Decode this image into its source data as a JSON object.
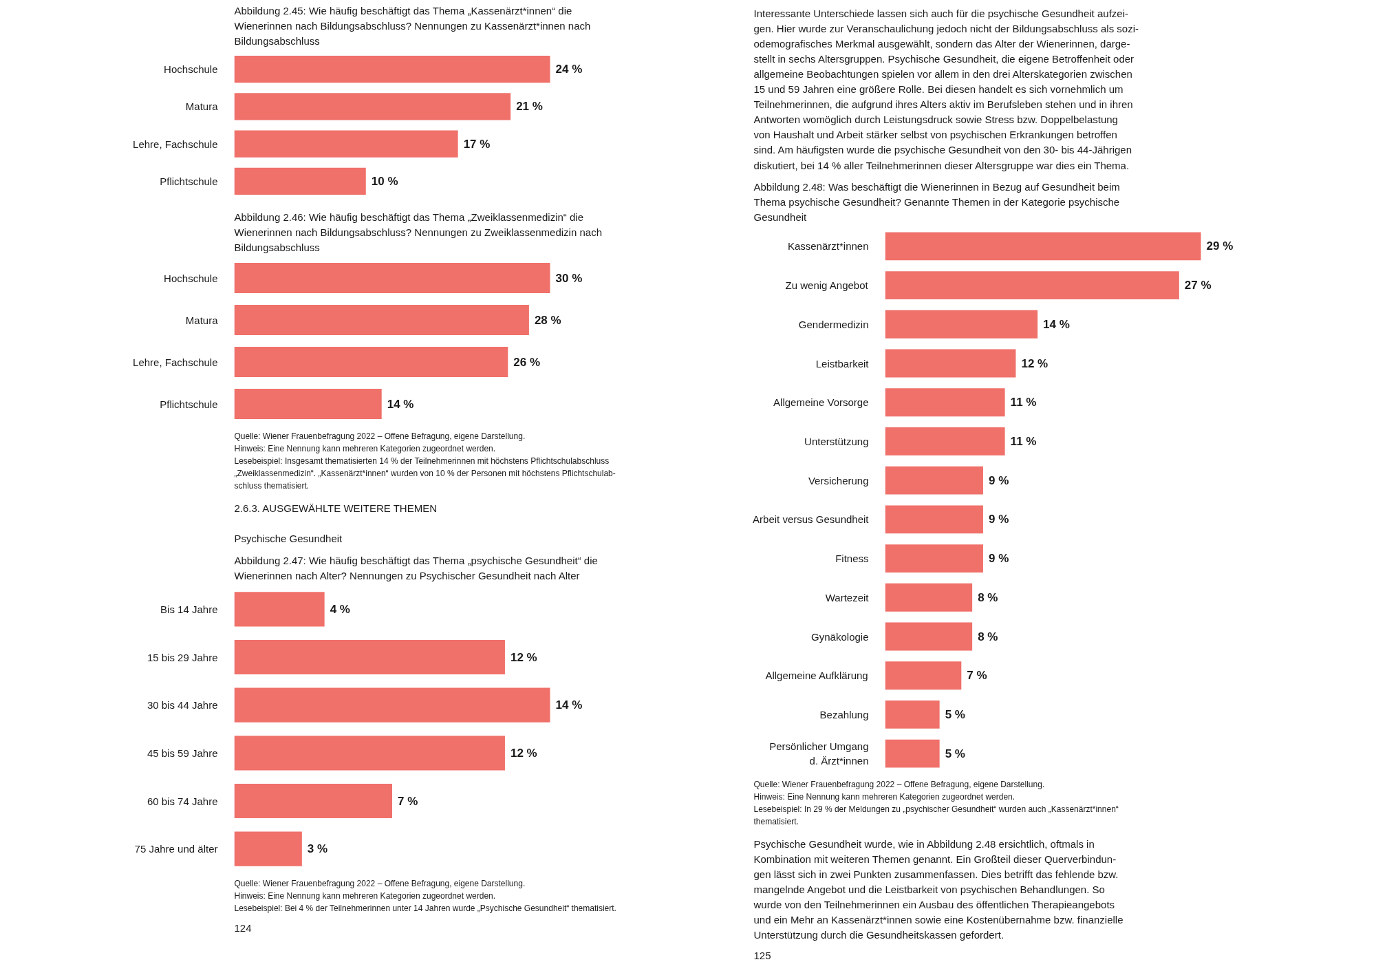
{
  "chart_data": [
    {
      "type": "bar",
      "orientation": "horizontal",
      "title": "Abbildung 2.45: Wie häufig beschäftigt das Thema „Kassenärzt*innen“ die\nWienerinnen nach Bildungsabschluss? Nennungen zu Kassenärzt*innen nach\nBildungsabschluss",
      "categories": [
        "Hochschule",
        "Matura",
        "Lehre, Fachschule",
        "Pflichtschule"
      ],
      "values": [
        24,
        21,
        17,
        10
      ],
      "value_labels": [
        "24 %",
        "21 %",
        "17 %",
        "10 %"
      ],
      "color": "#f0706a"
    },
    {
      "type": "bar",
      "orientation": "horizontal",
      "title": "Abbildung 2.46: Wie häufig beschäftigt das Thema „Zweiklassenmedizin“ die\nWienerinnen nach Bildungsabschluss? Nennungen zu Zweiklassenmedizin nach\nBildungsabschluss",
      "categories": [
        "Hochschule",
        "Matura",
        "Lehre, Fachschule",
        "Pflichtschule"
      ],
      "values": [
        30,
        28,
        26,
        14
      ],
      "value_labels": [
        "30 %",
        "28 %",
        "26 %",
        "14 %"
      ],
      "color": "#f0706a",
      "annotations": [
        "Quelle: Wiener Frauenbefragung 2022 – Offene Befragung, eigene Darstellung.\nHinweis: Eine Nennung kann mehreren Kategorien zugeordnet werden.\nLesebeispiel: Insgesamt thematisierten 14 % der Teilnehmerinnen mit höchstens Pflichtschulabschluss\n„Zweiklassenmedizin“. „Kassenärzt*innen“ wurden von 10 % der Personen mit höchstens Pflichtschulab-\nschluss thematisiert."
      ]
    },
    {
      "type": "bar",
      "orientation": "horizontal",
      "subtitle": "2.6.3. AUSGEWÄHLTE WEITERE THEMEN\n\nPsychische Gesundheit",
      "title": "Abbildung 2.47: Wie häufig beschäftigt das Thema „psychische Gesundheit“ die\nWienerinnen nach Alter? Nennungen zu Psychischer Gesundheit nach Alter",
      "categories": [
        "Bis 14 Jahre",
        "15 bis 29 Jahre",
        "30 bis 44 Jahre",
        "45 bis 59 Jahre",
        "60 bis 74 Jahre",
        "75 Jahre und älter"
      ],
      "values": [
        4,
        12,
        14,
        12,
        7,
        3
      ],
      "value_labels": [
        "4 %",
        "12 %",
        "14 %",
        "12 %",
        "7 %",
        "3 %"
      ],
      "color": "#f0706a",
      "annotations": [
        "Quelle: Wiener Frauenbefragung 2022 – Offene Befragung, eigene Darstellung.\nHinweis: Eine Nennung kann mehreren Kategorien zugeordnet werden.\nLesebeispiel: Bei 4 % der Teilnehmerinnen unter 14 Jahren wurde „Psychische Gesundheit“ thematisiert.",
        "124"
      ]
    },
    {
      "type": "bar",
      "orientation": "horizontal",
      "subtitle": "Interessante Unterschiede lassen sich auch für die psychische Gesundheit aufzei-\ngen. Hier wurde zur Veranschaulichung jedoch nicht der Bildungsabschluss als sozi-\nodemografisches Merkmal ausgewählt, sondern das Alter der Wienerinnen, darge-\nstellt in sechs Altersgruppen. Psychische Gesundheit, die eigene Betroffenheit oder\nallgemeine Beobachtungen spielen vor allem in den drei Alterskategorien zwischen\n15 und 59 Jahren eine größere Rolle. Bei diesen handelt es sich vornehmlich um\nTeilnehmerinnen, die aufgrund ihres Alters aktiv im Berufsleben stehen und in ihren\nAntworten womöglich durch Leistungsdruck sowie Stress bzw. Doppelbelastung\nvon Haushalt und Arbeit stärker selbst von psychischen Erkrankungen betroffen\nsind. Am häufigsten wurde die psychische Gesundheit von den 30- bis 44-Jährigen\ndiskutiert, bei 14 % aller Teilnehmerinnen dieser Altersgruppe war dies ein Thema.",
      "title": "Abbildung 2.48: Was beschäftigt die Wienerinnen in Bezug auf Gesundheit beim\nThema psychische Gesundheit? Genannte Themen in der Kategorie psychische\nGesundheit",
      "categories": [
        "Kassenärzt*innen",
        "Zu wenig Angebot",
        "Gendermedizin",
        "Leistbarkeit",
        "Allgemeine Vorsorge",
        "Unterstützung",
        "Versicherung",
        "Arbeit versus Gesundheit",
        "Fitness",
        "Wartezeit",
        "Gynäkologie",
        "Allgemeine Aufklärung",
        "Bezahlung",
        "Persönlicher Umgang\nd. Ärzt*innen"
      ],
      "values": [
        29,
        27,
        14,
        12,
        11,
        11,
        9,
        9,
        9,
        8,
        8,
        7,
        5,
        5
      ],
      "value_labels": [
        "29 %",
        "27 %",
        "14 %",
        "12 %",
        "11 %",
        "11 %",
        "9 %",
        "9 %",
        "9 %",
        "8 %",
        "8 %",
        "7 %",
        "5 %",
        "5 %"
      ],
      "color": "#f0706a",
      "annotations": [
        "Quelle: Wiener Frauenbefragung 2022 – Offene Befragung, eigene Darstellung.\nHinweis: Eine Nennung kann mehreren Kategorien zugeordnet werden.\nLesebeispiel: In 29 % der Meldungen zu „psychischer Gesundheit“ wurden auch „Kassenärzt*innen“\nthematisiert.",
        "Psychische Gesundheit wurde, wie in Abbildung 2.48 ersichtlich, oftmals in\nKombination mit weiteren Themen genannt. Ein Großteil dieser Querverbindun-\ngen lässt sich in zwei Punkten zusammenfassen. Dies betrifft das fehlende bzw.\nmangelnde Angebot und die Leistbarkeit von psychischen Behandlungen. So\nwurde von den Teilnehmerinnen ein Ausbau des öffentlichen Therapieangebots\nund ein Mehr an Kassenärzt*innen sowie eine Kostenübernahme bzw. finanzielle\nUnterstützung durch die Gesundheitskassen gefordert.",
        "125"
      ]
    }
  ]
}
